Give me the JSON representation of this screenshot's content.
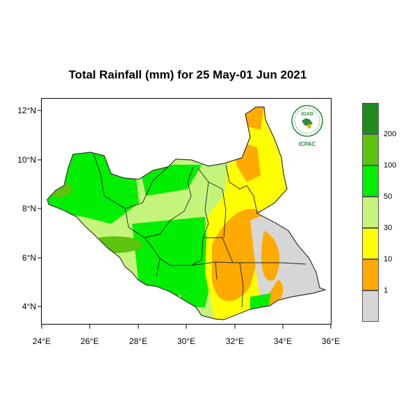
{
  "title": "Total Rainfall (mm) for 25 May-01 Jun 2021",
  "axes": {
    "y_ticks": [
      "12°N",
      "10°N",
      "8°N",
      "6°N",
      "4°N"
    ],
    "x_ticks": [
      "24°E",
      "26°E",
      "28°E",
      "30°E",
      "32°E",
      "34°E",
      "36°E"
    ]
  },
  "legend": {
    "classes": [
      {
        "color": "#1f8a1f"
      },
      {
        "color": "#5cc40e"
      },
      {
        "color": "#00ee00"
      },
      {
        "color": "#c4f57a"
      },
      {
        "color": "#ffff00"
      },
      {
        "color": "#ffaa00"
      },
      {
        "color": "#d6d6d6"
      }
    ],
    "labels": [
      "200",
      "100",
      "50",
      "30",
      "10",
      "1"
    ]
  },
  "logo": {
    "top_text": "IGAD",
    "bottom_text": "ICPAC"
  }
}
